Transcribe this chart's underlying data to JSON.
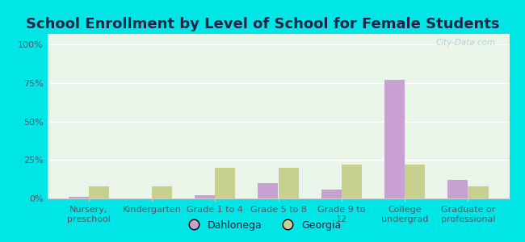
{
  "title": "School Enrollment by Level of School for Female Students",
  "categories": [
    "Nursery,\npreschool",
    "Kindergarten",
    "Grade 1 to 4",
    "Grade 5 to 8",
    "Grade 9 to\n12",
    "College\nundergrad",
    "Graduate or\nprofessional"
  ],
  "dahlonega": [
    1.0,
    0.0,
    2.0,
    10.0,
    6.0,
    77.0,
    12.0
  ],
  "georgia": [
    8.0,
    8.0,
    20.0,
    20.0,
    22.0,
    22.0,
    8.0
  ],
  "dahlonega_color": "#c8a0d2",
  "georgia_color": "#c8d090",
  "background_outer": "#00e5e5",
  "background_plot": "#eaf5ea",
  "yticks": [
    0,
    25,
    50,
    75,
    100
  ],
  "ylim": [
    0,
    107
  ],
  "bar_width": 0.32,
  "title_fontsize": 13,
  "tick_fontsize": 8,
  "legend_fontsize": 9,
  "title_color": "#222244",
  "grid_color": "#ffffff",
  "watermark_color": "#aaccd4"
}
